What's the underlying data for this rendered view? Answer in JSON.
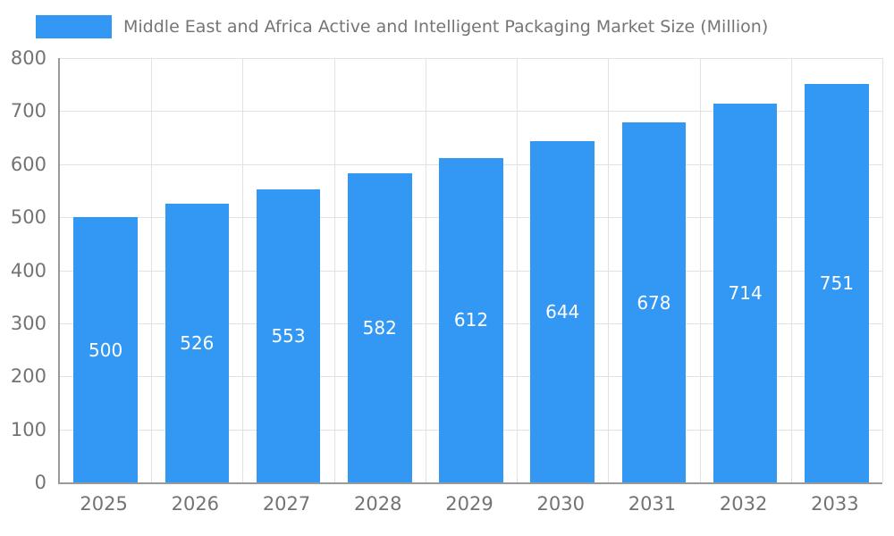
{
  "legend": {
    "swatch_color": "#3398f4"
  },
  "chart_data": {
    "type": "bar",
    "title": "Middle East and Africa Active and Intelligent Packaging Market Size (Million)",
    "categories": [
      "2025",
      "2026",
      "2027",
      "2028",
      "2029",
      "2030",
      "2031",
      "2032",
      "2033"
    ],
    "values": [
      500,
      526,
      553,
      582,
      612,
      644,
      678,
      714,
      751
    ],
    "xlabel": "",
    "ylabel": "",
    "ylim": [
      0,
      800
    ],
    "ytick_step": 100,
    "grid": true,
    "legend_position": "top-left",
    "bar_color": "#3398f4",
    "bar_label_color": "#ffffff",
    "axis_text_color": "#737373",
    "grid_color": "#e2e2e2",
    "axis_line_color": "#9a9a9a",
    "background_color": "#ffffff"
  }
}
